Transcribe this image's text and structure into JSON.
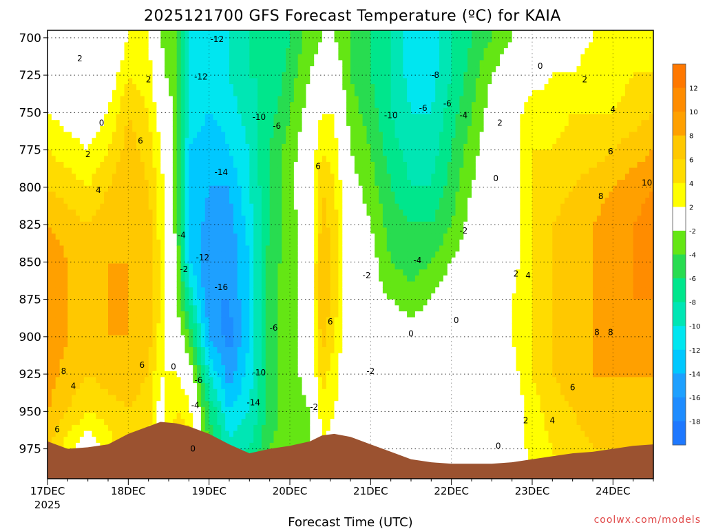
{
  "chart_data": {
    "type": "heatmap",
    "title": "2025121700 GFS Forecast Temperature (ºC) for KAIA",
    "xlabel": "Forecast Time (UTC)",
    "year_label": "2025",
    "x_tick_labels": [
      "17DEC",
      "18DEC",
      "19DEC",
      "20DEC",
      "21DEC",
      "22DEC",
      "23DEC",
      "24DEC"
    ],
    "y_tick_labels": [
      "700",
      "725",
      "750",
      "775",
      "800",
      "825",
      "850",
      "875",
      "900",
      "925",
      "950",
      "975"
    ],
    "y_ticks": [
      700,
      725,
      750,
      775,
      800,
      825,
      850,
      875,
      900,
      925,
      950,
      975
    ],
    "ylim": [
      695,
      995
    ],
    "x_range_days": [
      0,
      7.5
    ],
    "colorbar": {
      "bins": [
        {
          "range": [
            -20,
            -18
          ],
          "color": "#1e78ff"
        },
        {
          "range": [
            -18,
            -16
          ],
          "color": "#1e8cff"
        },
        {
          "range": [
            -16,
            -14
          ],
          "color": "#1ea0ff"
        },
        {
          "range": [
            -14,
            -12
          ],
          "color": "#00c8ff"
        },
        {
          "range": [
            -12,
            -10
          ],
          "color": "#00e6f0"
        },
        {
          "range": [
            -10,
            -8
          ],
          "color": "#00e6b4"
        },
        {
          "range": [
            -8,
            -6
          ],
          "color": "#00e68c"
        },
        {
          "range": [
            -6,
            -4
          ],
          "color": "#28dc50"
        },
        {
          "range": [
            -4,
            -2
          ],
          "color": "#64e614"
        },
        {
          "range": [
            -2,
            2
          ],
          "color": "#ffffff"
        },
        {
          "range": [
            2,
            4
          ],
          "color": "#ffff00"
        },
        {
          "range": [
            4,
            6
          ],
          "color": "#ffdc00"
        },
        {
          "range": [
            6,
            8
          ],
          "color": "#ffc800"
        },
        {
          "range": [
            8,
            10
          ],
          "color": "#ffa000"
        },
        {
          "range": [
            10,
            12
          ],
          "color": "#ff8c00"
        },
        {
          "range": [
            12,
            14
          ],
          "color": "#ff7800"
        }
      ],
      "tick_labels": [
        "-18",
        "-16",
        "-14",
        "-12",
        "-10",
        "-8",
        "-6",
        "-4",
        "-2",
        "2",
        "4",
        "6",
        "8",
        "10",
        "12"
      ]
    },
    "columns": [
      {
        "t": 0.0,
        "ground": 970,
        "v": [
          -2,
          0,
          2,
          4,
          6,
          8,
          10,
          10,
          10,
          9,
          8,
          6,
          4
        ]
      },
      {
        "t": 0.25,
        "ground": 975,
        "v": [
          -2,
          -1,
          1,
          3,
          5,
          7,
          8,
          8,
          8,
          7,
          6,
          3,
          2
        ]
      },
      {
        "t": 0.5,
        "ground": 974,
        "v": [
          -2,
          -2,
          0,
          2,
          4,
          6,
          7,
          7,
          7,
          6,
          4,
          0,
          -3
        ]
      },
      {
        "t": 0.75,
        "ground": 972,
        "v": [
          -2,
          0,
          2,
          4,
          6,
          7,
          8,
          8,
          8,
          7,
          5,
          3,
          2
        ]
      },
      {
        "t": 1.0,
        "ground": 965,
        "v": [
          2,
          4,
          6,
          7,
          8,
          8,
          8,
          8,
          8,
          7,
          6,
          5,
          3
        ]
      },
      {
        "t": 1.25,
        "ground": 960,
        "v": [
          2,
          3,
          4,
          5,
          6,
          7,
          7,
          7,
          7,
          6,
          5,
          4,
          3
        ]
      },
      {
        "t": 1.4,
        "ground": 957,
        "v": [
          -2,
          -1,
          1,
          2,
          3,
          3,
          4,
          4,
          3,
          2,
          1,
          0,
          0
        ]
      },
      {
        "t": 1.6,
        "ground": 958,
        "v": [
          -4,
          -4,
          -3,
          -3,
          -3,
          -3,
          -2,
          -2,
          0,
          2,
          4,
          6,
          6
        ]
      },
      {
        "t": 1.75,
        "ground": 960,
        "v": [
          -10,
          -10,
          -10,
          -12,
          -12,
          -12,
          -12,
          -8,
          -4,
          0,
          3,
          5,
          4
        ]
      },
      {
        "t": 2.0,
        "ground": 965,
        "v": [
          -12,
          -12,
          -12,
          -14,
          -14,
          -15,
          -16,
          -16,
          -14,
          -10,
          -6,
          -4,
          -2
        ]
      },
      {
        "t": 2.25,
        "ground": 972,
        "v": [
          -10,
          -10,
          -11,
          -12,
          -14,
          -15,
          -16,
          -16,
          -17,
          -15,
          -12,
          -9,
          -7
        ]
      },
      {
        "t": 2.5,
        "ground": 978,
        "v": [
          -8,
          -8,
          -9,
          -10,
          -10,
          -11,
          -12,
          -12,
          -12,
          -11,
          -10,
          -8,
          -6
        ]
      },
      {
        "t": 2.75,
        "ground": 975,
        "v": [
          -8,
          -8,
          -7,
          -6,
          -6,
          -6,
          -5,
          -5,
          -5,
          -5,
          -5,
          -4,
          -3
        ]
      },
      {
        "t": 3.0,
        "ground": 973,
        "v": [
          -6,
          -5,
          -4,
          -3,
          -3,
          -3,
          -3,
          -3,
          -3,
          -3,
          -3,
          -3,
          -2
        ]
      },
      {
        "t": 3.25,
        "ground": 970,
        "v": [
          -3,
          -2,
          -1,
          0,
          1,
          0,
          0,
          0,
          0,
          -1,
          -2,
          -2,
          -1
        ]
      },
      {
        "t": 3.4,
        "ground": 966,
        "v": [
          -2,
          -1,
          2,
          4,
          6,
          7,
          8,
          8,
          7,
          5,
          3,
          2,
          0
        ]
      },
      {
        "t": 3.55,
        "ground": 965,
        "v": [
          -2,
          0,
          2,
          3,
          4,
          5,
          5,
          5,
          4,
          3,
          2,
          1,
          0
        ]
      },
      {
        "t": 3.75,
        "ground": 967,
        "v": [
          -4,
          -4,
          -3,
          -2,
          -1,
          0,
          0,
          0,
          0,
          -1,
          0,
          1,
          0
        ]
      },
      {
        "t": 4.0,
        "ground": 972,
        "v": [
          -6,
          -6,
          -5,
          -4,
          -3,
          -2,
          -1,
          -1,
          -2,
          -2,
          -2,
          -1,
          0
        ]
      },
      {
        "t": 4.25,
        "ground": 977,
        "v": [
          -8,
          -8,
          -8,
          -7,
          -6,
          -5,
          -4,
          -2,
          0,
          0,
          0,
          0,
          0
        ]
      },
      {
        "t": 4.5,
        "ground": 982,
        "v": [
          -12,
          -11,
          -10,
          -9,
          -8,
          -6,
          -5,
          -3,
          -1,
          0,
          1,
          1,
          0
        ]
      },
      {
        "t": 4.75,
        "ground": 984,
        "v": [
          -12,
          -11,
          -10,
          -9,
          -8,
          -6,
          -4,
          -2,
          0,
          0,
          0,
          0,
          0
        ]
      },
      {
        "t": 5.0,
        "ground": 985,
        "v": [
          -8,
          -8,
          -7,
          -6,
          -5,
          -4,
          -2,
          0,
          0,
          0,
          0,
          0,
          0
        ]
      },
      {
        "t": 5.25,
        "ground": 985,
        "v": [
          -6,
          -5,
          -4,
          -3,
          -2,
          -1,
          0,
          0,
          0,
          0,
          0,
          0,
          -1
        ]
      },
      {
        "t": 5.5,
        "ground": 985,
        "v": [
          -4,
          -2,
          -1,
          0,
          0,
          0,
          0,
          0,
          0,
          0,
          0,
          0,
          0
        ]
      },
      {
        "t": 5.75,
        "ground": 984,
        "v": [
          -2,
          0,
          1,
          1,
          1,
          1,
          1,
          2,
          2,
          1,
          0,
          0,
          0
        ]
      },
      {
        "t": 6.0,
        "ground": 982,
        "v": [
          -1,
          1,
          3,
          4,
          4,
          4,
          4,
          4,
          4,
          4,
          3,
          3,
          1
        ]
      },
      {
        "t": 6.25,
        "ground": 980,
        "v": [
          0,
          2,
          3,
          4,
          5,
          6,
          6,
          6,
          6,
          6,
          5,
          4,
          3
        ]
      },
      {
        "t": 6.5,
        "ground": 978,
        "v": [
          1,
          2,
          4,
          5,
          6,
          7,
          7,
          7,
          7,
          7,
          6,
          5,
          4
        ]
      },
      {
        "t": 6.75,
        "ground": 977,
        "v": [
          2,
          3,
          4,
          5,
          7,
          8,
          8,
          8,
          8,
          8,
          7,
          6,
          5
        ]
      },
      {
        "t": 7.0,
        "ground": 975,
        "v": [
          2,
          3,
          4,
          6,
          8,
          9,
          9,
          9,
          9,
          8,
          7,
          6,
          6
        ]
      },
      {
        "t": 7.25,
        "ground": 973,
        "v": [
          3,
          4,
          5,
          7,
          9,
          10,
          10,
          10,
          9,
          8,
          7,
          7,
          6
        ]
      },
      {
        "t": 7.5,
        "ground": 972,
        "v": [
          4,
          4,
          6,
          8,
          10,
          11,
          11,
          10,
          9,
          8,
          7,
          7,
          6
        ]
      }
    ],
    "contour_labels": [
      {
        "t": 0.4,
        "p": 714,
        "text": "2"
      },
      {
        "t": 0.67,
        "p": 757,
        "text": "0"
      },
      {
        "t": 0.5,
        "p": 778,
        "text": "2"
      },
      {
        "t": 0.63,
        "p": 802,
        "text": "4"
      },
      {
        "t": 1.25,
        "p": 728,
        "text": "2"
      },
      {
        "t": 1.15,
        "p": 769,
        "text": "6"
      },
      {
        "t": 0.2,
        "p": 923,
        "text": "8"
      },
      {
        "t": 0.32,
        "p": 933,
        "text": "4"
      },
      {
        "t": 0.12,
        "p": 962,
        "text": "6"
      },
      {
        "t": 1.17,
        "p": 919,
        "text": "6"
      },
      {
        "t": 1.66,
        "p": 832,
        "text": "-4"
      },
      {
        "t": 1.69,
        "p": 855,
        "text": "-2"
      },
      {
        "t": 1.56,
        "p": 920,
        "text": "0"
      },
      {
        "t": 1.9,
        "p": 726,
        "text": "-12"
      },
      {
        "t": 2.1,
        "p": 701,
        "text": "-12"
      },
      {
        "t": 2.15,
        "p": 790,
        "text": "-14"
      },
      {
        "t": 2.62,
        "p": 753,
        "text": "-10"
      },
      {
        "t": 2.84,
        "p": 759,
        "text": "-6"
      },
      {
        "t": 1.92,
        "p": 847,
        "text": "-12"
      },
      {
        "t": 2.15,
        "p": 867,
        "text": "-16"
      },
      {
        "t": 2.62,
        "p": 924,
        "text": "-10"
      },
      {
        "t": 2.55,
        "p": 944,
        "text": "-14"
      },
      {
        "t": 2.8,
        "p": 894,
        "text": "-6"
      },
      {
        "t": 1.87,
        "p": 929,
        "text": "-6"
      },
      {
        "t": 1.83,
        "p": 946,
        "text": "-4"
      },
      {
        "t": 3.3,
        "p": 947,
        "text": "-2"
      },
      {
        "t": 3.35,
        "p": 786,
        "text": "6"
      },
      {
        "t": 3.5,
        "p": 890,
        "text": "6"
      },
      {
        "t": 3.95,
        "p": 859,
        "text": "-2"
      },
      {
        "t": 4.0,
        "p": 923,
        "text": "-2"
      },
      {
        "t": 4.25,
        "p": 752,
        "text": "-10"
      },
      {
        "t": 4.65,
        "p": 747,
        "text": "-6"
      },
      {
        "t": 4.95,
        "p": 744,
        "text": "-6"
      },
      {
        "t": 4.8,
        "p": 725,
        "text": "-8"
      },
      {
        "t": 5.15,
        "p": 752,
        "text": "-4"
      },
      {
        "t": 4.58,
        "p": 849,
        "text": "-4"
      },
      {
        "t": 5.15,
        "p": 829,
        "text": "-2"
      },
      {
        "t": 5.55,
        "p": 794,
        "text": "0"
      },
      {
        "t": 5.6,
        "p": 757,
        "text": "2"
      },
      {
        "t": 6.1,
        "p": 719,
        "text": "0"
      },
      {
        "t": 6.65,
        "p": 728,
        "text": "2"
      },
      {
        "t": 7.0,
        "p": 748,
        "text": "4"
      },
      {
        "t": 6.97,
        "p": 776,
        "text": "6"
      },
      {
        "t": 7.42,
        "p": 797,
        "text": "10"
      },
      {
        "t": 6.85,
        "p": 806,
        "text": "8"
      },
      {
        "t": 5.8,
        "p": 858,
        "text": "2"
      },
      {
        "t": 5.95,
        "p": 859,
        "text": "4"
      },
      {
        "t": 5.06,
        "p": 889,
        "text": "0"
      },
      {
        "t": 4.5,
        "p": 898,
        "text": "0"
      },
      {
        "t": 5.58,
        "p": 973,
        "text": "0"
      },
      {
        "t": 5.92,
        "p": 956,
        "text": "2"
      },
      {
        "t": 6.25,
        "p": 956,
        "text": "4"
      },
      {
        "t": 6.5,
        "p": 934,
        "text": "6"
      },
      {
        "t": 6.8,
        "p": 897,
        "text": "8"
      },
      {
        "t": 6.97,
        "p": 897,
        "text": "8"
      },
      {
        "t": 1.8,
        "p": 975,
        "text": "0"
      }
    ]
  },
  "credit": "coolwx.com/models"
}
